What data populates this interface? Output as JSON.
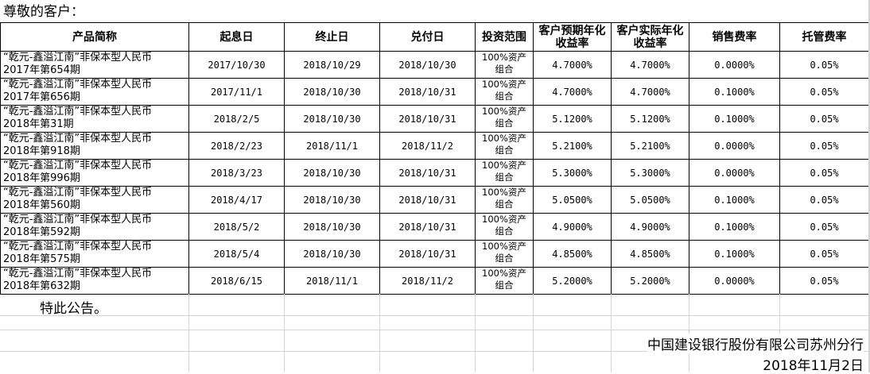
{
  "greeting": "尊敬的客户：",
  "table": {
    "headers": [
      "产品简称",
      "起息日",
      "终止日",
      "兑付日",
      "投资范围",
      "客户预期年化收益率",
      "客户实际年化收益率",
      "销售费率",
      "托管费率"
    ],
    "rows": [
      {
        "name1": "“乾元-鑫溢江南”非保本型人民币",
        "name2": "2017年第654期",
        "start": "2017/10/30",
        "end": "2018/10/29",
        "pay": "2018/10/30",
        "scope": "100%资产组合",
        "expected": "4.7000%",
        "actual": "4.7000%",
        "sales": "0.0000%",
        "custody": "0.05%"
      },
      {
        "name1": "“乾元-鑫溢江南”非保本型人民币",
        "name2": "2017年第656期",
        "start": "2017/11/1",
        "end": "2018/10/30",
        "pay": "2018/10/31",
        "scope": "100%资产组合",
        "expected": "4.7000%",
        "actual": "4.7000%",
        "sales": "0.1000%",
        "custody": "0.05%"
      },
      {
        "name1": "“乾元-鑫溢江南”非保本型人民币",
        "name2": "2018年第31期",
        "start": "2018/2/5",
        "end": "2018/10/30",
        "pay": "2018/10/31",
        "scope": "100%资产组合",
        "expected": "5.1200%",
        "actual": "5.1200%",
        "sales": "0.1000%",
        "custody": "0.05%"
      },
      {
        "name1": "“乾元-鑫溢江南”非保本型人民币",
        "name2": "2018年第918期",
        "start": "2018/2/23",
        "end": "2018/11/1",
        "pay": "2018/11/2",
        "scope": "100%资产组合",
        "expected": "5.2100%",
        "actual": "5.2100%",
        "sales": "0.0000%",
        "custody": "0.05%"
      },
      {
        "name1": "“乾元-鑫溢江南”非保本型人民币",
        "name2": "2018年第996期",
        "start": "2018/3/23",
        "end": "2018/10/30",
        "pay": "2018/10/31",
        "scope": "100%资产组合",
        "expected": "5.3000%",
        "actual": "5.3000%",
        "sales": "0.0000%",
        "custody": "0.05%"
      },
      {
        "name1": "“乾元-鑫溢江南”非保本型人民币",
        "name2": "2018年第560期",
        "start": "2018/4/17",
        "end": "2018/10/30",
        "pay": "2018/10/31",
        "scope": "100%资产组合",
        "expected": "5.0500%",
        "actual": "5.0500%",
        "sales": "0.1000%",
        "custody": "0.05%"
      },
      {
        "name1": "“乾元-鑫溢江南”非保本型人民币",
        "name2": "2018年第592期",
        "start": "2018/5/2",
        "end": "2018/10/30",
        "pay": "2018/10/31",
        "scope": "100%资产组合",
        "expected": "4.9000%",
        "actual": "4.9000%",
        "sales": "0.1000%",
        "custody": "0.05%"
      },
      {
        "name1": "“乾元-鑫溢江南”非保本型人民币",
        "name2": "2018年第575期",
        "start": "2018/5/4",
        "end": "2018/10/30",
        "pay": "2018/10/31",
        "scope": "100%资产组合",
        "expected": "4.8500%",
        "actual": "4.8500%",
        "sales": "0.1000%",
        "custody": "0.05%"
      },
      {
        "name1": "“乾元-鑫溢江南”非保本型人民币",
        "name2": "2018年第632期",
        "start": "2018/6/15",
        "end": "2018/11/1",
        "pay": "2018/11/2",
        "scope": "100%资产组合",
        "expected": "5.2000%",
        "actual": "5.2000%",
        "sales": "0.0000%",
        "custody": "0.05%"
      }
    ]
  },
  "notice": "特此公告。",
  "bank": "中国建设银行股份有限公司苏州分行",
  "date": "2018年11月2日"
}
